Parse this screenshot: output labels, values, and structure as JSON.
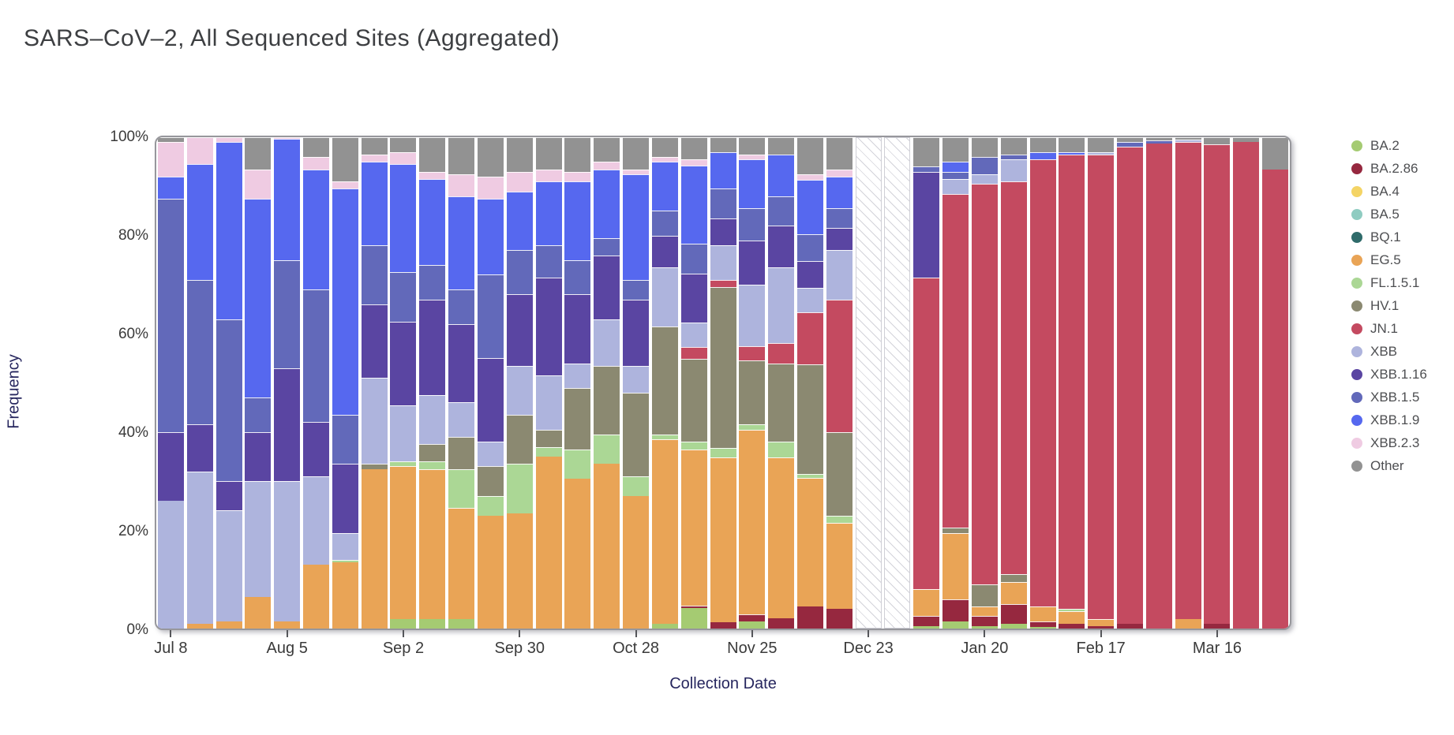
{
  "page": {
    "title": "SARS–CoV–2, All Sequenced Sites (Aggregated)"
  },
  "chart_data": {
    "type": "bar",
    "stacked": true,
    "normalized": "percent_of_total",
    "title": "SARS–CoV–2, All Sequenced Sites (Aggregated)",
    "xlabel": "Collection Date",
    "ylabel": "Frequency",
    "ylim": [
      0,
      100
    ],
    "y_ticks": [
      "0%",
      "20%",
      "40%",
      "60%",
      "80%",
      "100%"
    ],
    "grid": false,
    "legend_position": "right",
    "x_tick_indices": [
      0,
      4,
      8,
      12,
      16,
      20,
      24,
      28,
      32,
      36
    ],
    "x_tick_labels": [
      "Jul 8",
      "Aug 5",
      "Sep 2",
      "Sep 30",
      "Oct 28",
      "Nov 25",
      "Dec 23",
      "Jan 20",
      "Feb 17",
      "Mar 16"
    ],
    "hatched_no_data_indices": [
      24,
      25
    ],
    "variants": [
      {
        "name": "BA.2",
        "color": "#a5cb72"
      },
      {
        "name": "BA.2.86",
        "color": "#96283f"
      },
      {
        "name": "BA.4",
        "color": "#f4d465"
      },
      {
        "name": "BA.5",
        "color": "#8fccc1"
      },
      {
        "name": "BQ.1",
        "color": "#2f6b6a"
      },
      {
        "name": "EG.5",
        "color": "#e9a456"
      },
      {
        "name": "FL.1.5.1",
        "color": "#abd795"
      },
      {
        "name": "HV.1",
        "color": "#8b8971"
      },
      {
        "name": "JN.1",
        "color": "#c44a60"
      },
      {
        "name": "XBB",
        "color": "#aeb4dd"
      },
      {
        "name": "XBB.1.16",
        "color": "#5a45a2"
      },
      {
        "name": "XBB.1.5",
        "color": "#6269ba"
      },
      {
        "name": "XBB.1.9",
        "color": "#5668ef"
      },
      {
        "name": "XBB.2.3",
        "color": "#efcbe2"
      },
      {
        "name": "Other",
        "color": "#929292"
      }
    ],
    "bars": [
      {
        "date": "Jul 8",
        "values": {
          "XBB": 26,
          "XBB.1.16": 14,
          "XBB.1.5": 47.5,
          "XBB.1.9": 4.5,
          "XBB.2.3": 7,
          "Other": 1
        }
      },
      {
        "date": "Jul 15",
        "values": {
          "EG.5": 1,
          "XBB": 31,
          "XBB.1.16": 9.5,
          "XBB.1.5": 29.5,
          "XBB.1.9": 23.5,
          "XBB.2.3": 5.5
        }
      },
      {
        "date": "Jul 22",
        "values": {
          "EG.5": 1.5,
          "XBB": 22.5,
          "XBB.1.16": 6,
          "XBB.1.5": 33,
          "XBB.1.9": 36,
          "XBB.2.3": 1
        }
      },
      {
        "date": "Jul 29",
        "values": {
          "EG.5": 6.5,
          "XBB": 23.5,
          "XBB.1.16": 10,
          "XBB.1.5": 7,
          "XBB.1.9": 40.5,
          "XBB.2.3": 6,
          "Other": 6.5
        }
      },
      {
        "date": "Aug 5",
        "values": {
          "EG.5": 1.5,
          "XBB": 28.5,
          "XBB.1.16": 23,
          "XBB.1.5": 22,
          "XBB.1.9": 24.7,
          "XBB.2.3": 0.3
        }
      },
      {
        "date": "Aug 12",
        "values": {
          "EG.5": 13,
          "XBB": 18,
          "XBB.1.16": 11,
          "XBB.1.5": 27,
          "XBB.1.9": 24.5,
          "XBB.2.3": 2.5,
          "Other": 4
        }
      },
      {
        "date": "Aug 19",
        "values": {
          "EG.5": 13.5,
          "FL.1.5.1": 0.5,
          "XBB": 5.5,
          "XBB.1.16": 14,
          "XBB.1.5": 10,
          "XBB.1.9": 46,
          "XBB.2.3": 1.5,
          "Other": 9
        }
      },
      {
        "date": "Aug 26",
        "values": {
          "EG.5": 32.5,
          "HV.1": 1,
          "XBB": 17.5,
          "XBB.1.16": 15,
          "XBB.1.5": 12,
          "XBB.1.9": 17,
          "XBB.2.3": 1.5,
          "Other": 3.5
        }
      },
      {
        "date": "Sep 2",
        "values": {
          "BA.2": 2,
          "EG.5": 31,
          "FL.1.5.1": 1,
          "XBB": 11.5,
          "XBB.1.16": 17,
          "XBB.1.5": 10,
          "XBB.1.9": 22,
          "XBB.2.3": 2.5,
          "Other": 3
        }
      },
      {
        "date": "Sep 9",
        "values": {
          "BA.2": 2,
          "EG.5": 30.5,
          "FL.1.5.1": 1.5,
          "HV.1": 3.5,
          "XBB": 10,
          "XBB.1.16": 19.5,
          "XBB.1.5": 7,
          "XBB.1.9": 17.5,
          "XBB.2.3": 1.5,
          "Other": 7
        }
      },
      {
        "date": "Sep 16",
        "values": {
          "BA.2": 2,
          "EG.5": 22.5,
          "FL.1.5.1": 8,
          "HV.1": 6.5,
          "XBB": 7,
          "XBB.1.16": 16,
          "XBB.1.5": 7,
          "XBB.1.9": 19,
          "XBB.2.3": 4.5,
          "Other": 7.5
        }
      },
      {
        "date": "Sep 23",
        "values": {
          "EG.5": 23,
          "FL.1.5.1": 4,
          "HV.1": 6,
          "XBB": 5,
          "XBB.1.16": 17,
          "XBB.1.5": 17,
          "XBB.1.9": 15.5,
          "XBB.2.3": 4.5,
          "Other": 8
        }
      },
      {
        "date": "Sep 30",
        "values": {
          "EG.5": 23.5,
          "FL.1.5.1": 10,
          "HV.1": 10,
          "XBB": 10,
          "XBB.1.16": 14.5,
          "XBB.1.5": 9,
          "XBB.1.9": 12,
          "XBB.2.3": 4,
          "Other": 7
        }
      },
      {
        "date": "Oct 7",
        "values": {
          "EG.5": 35,
          "FL.1.5.1": 2,
          "HV.1": 3.5,
          "XBB": 11,
          "XBB.1.16": 20,
          "XBB.1.5": 6.5,
          "XBB.1.9": 13,
          "XBB.2.3": 2.5,
          "Other": 6.5
        }
      },
      {
        "date": "Oct 14",
        "values": {
          "EG.5": 30.5,
          "FL.1.5.1": 6,
          "HV.1": 12.5,
          "XBB": 5,
          "XBB.1.16": 14,
          "XBB.1.5": 7,
          "XBB.1.9": 16,
          "XBB.2.3": 2,
          "Other": 7
        }
      },
      {
        "date": "Oct 21",
        "values": {
          "EG.5": 33.5,
          "FL.1.5.1": 6,
          "HV.1": 14,
          "XBB": 9.5,
          "XBB.1.16": 13,
          "XBB.1.5": 3.5,
          "XBB.1.9": 14,
          "XBB.2.3": 1.5,
          "Other": 5
        }
      },
      {
        "date": "Oct 28",
        "values": {
          "EG.5": 27,
          "FL.1.5.1": 4,
          "HV.1": 17,
          "XBB": 5.5,
          "XBB.1.16": 13.5,
          "XBB.1.5": 4,
          "XBB.1.9": 21.5,
          "XBB.2.3": 1,
          "Other": 6.5
        }
      },
      {
        "date": "Nov 4",
        "values": {
          "BA.2": 1,
          "EG.5": 37.5,
          "FL.1.5.1": 1,
          "HV.1": 22,
          "XBB": 12,
          "XBB.1.16": 6.5,
          "XBB.1.5": 5,
          "XBB.1.9": 10,
          "XBB.2.3": 1,
          "Other": 4
        }
      },
      {
        "date": "Nov 11",
        "values": {
          "BA.2": 4.2,
          "BA.2.86": 0.4,
          "EG.5": 31.9,
          "FL.1.5.1": 1.6,
          "HV.1": 16.8,
          "JN.1": 2.4,
          "XBB": 5,
          "XBB.1.16": 10,
          "XBB.1.5": 6,
          "XBB.1.9": 16,
          "XBB.2.3": 1.2,
          "Other": 4.5
        }
      },
      {
        "date": "Nov 18",
        "values": {
          "BA.2.86": 1.3,
          "EG.5": 33.6,
          "FL.1.5.1": 1.8,
          "HV.1": 32.8,
          "JN.1": 1.5,
          "XBB": 7,
          "XBB.1.16": 5.5,
          "XBB.1.5": 6,
          "XBB.1.9": 7.5,
          "Other": 3
        }
      },
      {
        "date": "Nov 25",
        "values": {
          "BA.2": 1.5,
          "BA.2.86": 1.4,
          "EG.5": 37.6,
          "FL.1.5.1": 1,
          "HV.1": 13,
          "JN.1": 3,
          "XBB": 12.5,
          "XBB.1.16": 9,
          "XBB.1.5": 6.5,
          "XBB.1.9": 10,
          "XBB.2.3": 1,
          "Other": 3.5
        }
      },
      {
        "date": "Dec 2",
        "values": {
          "BA.2.86": 2.1,
          "EG.5": 32.8,
          "FL.1.5.1": 3.2,
          "HV.1": 15.8,
          "JN.1": 4.2,
          "XBB": 15.4,
          "XBB.1.16": 8.5,
          "XBB.1.5": 6,
          "XBB.1.9": 8.5,
          "Other": 3.5
        }
      },
      {
        "date": "Dec 9",
        "values": {
          "BA.2.86": 4.5,
          "EG.5": 26.1,
          "FL.1.5.1": 0.8,
          "HV.1": 22.4,
          "JN.1": 10.5,
          "XBB": 5,
          "XBB.1.16": 5.5,
          "XBB.1.5": 5.5,
          "XBB.1.9": 11,
          "XBB.2.3": 1.2,
          "Other": 7.5
        }
      },
      {
        "date": "Dec 16",
        "values": {
          "BA.2.86": 4,
          "EG.5": 17.5,
          "FL.1.5.1": 1.5,
          "HV.1": 17,
          "JN.1": 27,
          "XBB": 10,
          "XBB.1.16": 4.5,
          "XBB.1.5": 4,
          "XBB.1.9": 6.5,
          "XBB.2.3": 1.5,
          "Other": 6.5
        }
      },
      {
        "date": "Dec 23",
        "hatched": true,
        "values": {}
      },
      {
        "date": "Dec 30",
        "hatched": true,
        "values": {}
      },
      {
        "date": "Jan 6",
        "values": {
          "BA.2": 0.5,
          "BA.2.86": 2,
          "EG.5": 5.5,
          "JN.1": 63.5,
          "XBB.1.16": 21.5,
          "XBB.1.5": 1,
          "Other": 6
        }
      },
      {
        "date": "Jan 13",
        "values": {
          "BA.2": 1.5,
          "BA.2.86": 4.5,
          "EG.5": 13.5,
          "HV.1": 1,
          "JN.1": 68,
          "XBB": 3,
          "XBB.1.5": 1.5,
          "XBB.1.9": 2,
          "Other": 5
        }
      },
      {
        "date": "Jan 20",
        "values": {
          "BA.2": 0.5,
          "BA.2.86": 2,
          "EG.5": 2,
          "HV.1": 4.5,
          "JN.1": 81.5,
          "XBB": 2,
          "XBB.1.5": 3.5,
          "Other": 4
        }
      },
      {
        "date": "Jan 27",
        "values": {
          "BA.2": 1,
          "BA.2.86": 4,
          "EG.5": 4.5,
          "HV.1": 1.5,
          "JN.1": 80,
          "XBB": 4.5,
          "XBB.1.5": 1,
          "Other": 3.5
        }
      },
      {
        "date": "Feb 3",
        "values": {
          "BA.2": 0.3,
          "BA.2.86": 1.2,
          "EG.5": 3,
          "JN.1": 91,
          "XBB.1.9": 1.5,
          "Other": 3
        }
      },
      {
        "date": "Feb 10",
        "values": {
          "BA.2.86": 1,
          "EG.5": 2.5,
          "FL.1.5.1": 0.5,
          "JN.1": 92.5,
          "XBB.1.9": 0.5,
          "Other": 3
        }
      },
      {
        "date": "Feb 17",
        "values": {
          "BA.2.86": 0.5,
          "EG.5": 1.5,
          "JN.1": 94.5,
          "XBB": 0.5,
          "Other": 3
        }
      },
      {
        "date": "Feb 24",
        "values": {
          "BA.2.86": 1,
          "JN.1": 97,
          "XBB.1.5": 1,
          "Other": 1
        }
      },
      {
        "date": "Mar 2",
        "values": {
          "JN.1": 98.7,
          "XBB.1.5": 0.6,
          "Other": 0.7
        }
      },
      {
        "date": "Mar 9",
        "values": {
          "EG.5": 2,
          "JN.1": 97,
          "XBB": 0.5,
          "Other": 0.5
        }
      },
      {
        "date": "Mar 16",
        "values": {
          "BA.2.86": 1,
          "JN.1": 97.5,
          "Other": 1.5
        }
      },
      {
        "date": "Mar 23",
        "values": {
          "JN.1": 99,
          "Other": 1
        }
      },
      {
        "date": "Mar 30",
        "values": {
          "JN.1": 93.5,
          "Other": 6.5
        }
      }
    ]
  }
}
